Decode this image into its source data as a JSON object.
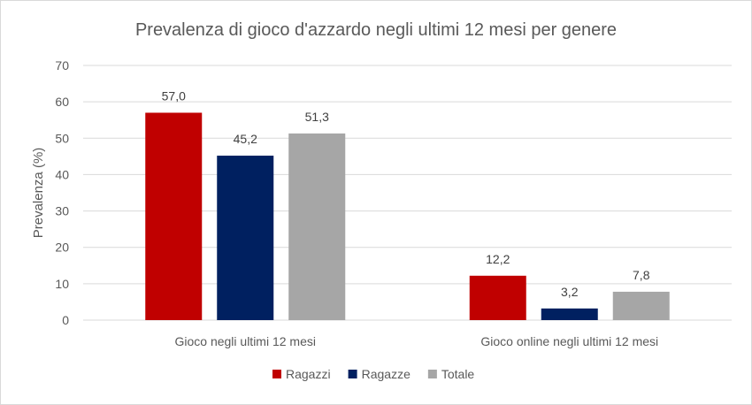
{
  "chart_data": {
    "type": "bar",
    "title": "Prevalenza di gioco d'azzardo negli ultimi 12 mesi per genere",
    "ylabel": "Prevalenza (%)",
    "xlabel": "",
    "ylim": [
      0,
      70
    ],
    "yticks": [
      0,
      10,
      20,
      30,
      40,
      50,
      60,
      70
    ],
    "grid": true,
    "legend_position": "bottom",
    "categories": [
      "Gioco negli ultimi 12 mesi",
      "Gioco online negli ultimi 12 mesi"
    ],
    "series": [
      {
        "name": "Ragazzi",
        "color": "#C00000",
        "values": [
          57.0,
          12.2
        ],
        "labels": [
          "57,0",
          "12,2"
        ]
      },
      {
        "name": "Ragazze",
        "color": "#002060",
        "values": [
          45.2,
          3.2
        ],
        "labels": [
          "45,2",
          "3,2"
        ]
      },
      {
        "name": "Totale",
        "color": "#A6A6A6",
        "values": [
          51.3,
          7.8
        ],
        "labels": [
          "51,3",
          "7,8"
        ]
      }
    ]
  }
}
